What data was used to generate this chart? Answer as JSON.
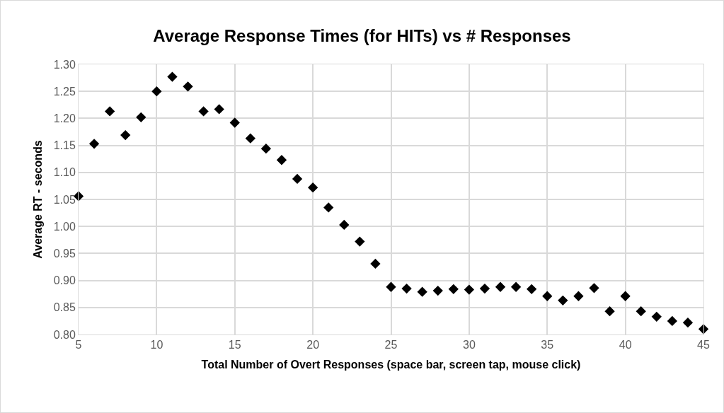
{
  "chart_data": {
    "type": "scatter",
    "title": "Average Response Times (for HITs) vs # Responses",
    "xlabel": "Total Number of Overt Responses (space bar, screen tap, mouse click)",
    "ylabel": "Average RT - seconds",
    "x": [
      5,
      6,
      7,
      8,
      9,
      10,
      11,
      12,
      13,
      14,
      15,
      16,
      17,
      18,
      19,
      20,
      21,
      22,
      23,
      24,
      25,
      26,
      27,
      28,
      29,
      30,
      31,
      32,
      33,
      34,
      35,
      36,
      37,
      38,
      39,
      40,
      41,
      42,
      43,
      44,
      45
    ],
    "series": [
      {
        "color": "#000000",
        "values": [
          1.056,
          1.153,
          1.213,
          1.169,
          1.202,
          1.25,
          1.277,
          1.259,
          1.213,
          1.217,
          1.192,
          1.163,
          1.144,
          1.123,
          1.088,
          1.072,
          1.035,
          1.003,
          0.972,
          0.931,
          0.888,
          0.885,
          0.879,
          0.881,
          0.884,
          0.883,
          0.885,
          0.888,
          0.888,
          0.884,
          0.871,
          0.863,
          0.871,
          0.886,
          0.843,
          0.871,
          0.843,
          0.833,
          0.825,
          0.822,
          0.81
        ]
      }
    ],
    "xlim": [
      5,
      45
    ],
    "xticks": [
      5,
      10,
      15,
      20,
      25,
      30,
      35,
      40,
      45
    ],
    "ylim": [
      0.8,
      1.3
    ],
    "yticks": [
      {
        "value": 0.8,
        "label": "0.80"
      },
      {
        "value": 0.85,
        "label": "0.85"
      },
      {
        "value": 0.9,
        "label": "0.90"
      },
      {
        "value": 0.95,
        "label": "0.95"
      },
      {
        "value": 1.0,
        "label": "1.00"
      },
      {
        "value": 1.05,
        "label": "1.05"
      },
      {
        "value": 1.1,
        "label": "1.10"
      },
      {
        "value": 1.15,
        "label": "1.15"
      },
      {
        "value": 1.2,
        "label": "1.20"
      },
      {
        "value": 1.25,
        "label": "1.25"
      },
      {
        "value": 1.3,
        "label": "1.30"
      }
    ],
    "grid": true,
    "marker": "diamond"
  }
}
